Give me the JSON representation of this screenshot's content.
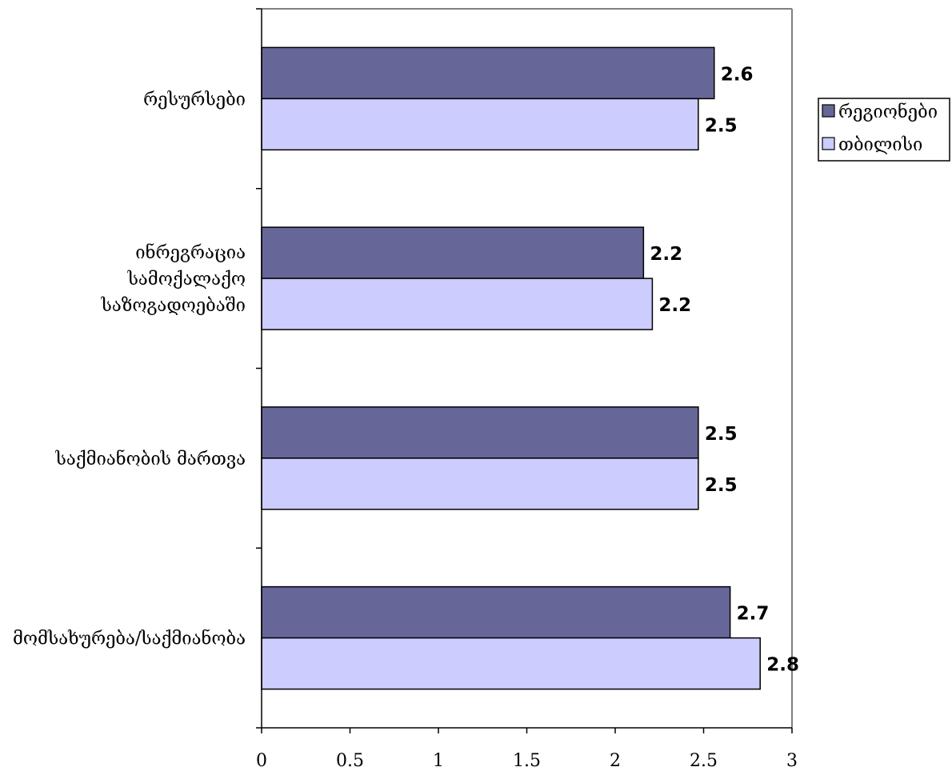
{
  "chart_data": {
    "type": "bar",
    "orientation": "horizontal",
    "categories": [
      "რესურსები",
      "ინრეგრაცია სამოქალაქო საზოგადოებაში",
      "საქმიანობის მართვა",
      "მომსახურება/საქმიანობა"
    ],
    "category_lines": [
      [
        "რესურსები"
      ],
      [
        "ინრეგრაცია",
        "სამოქალაქო",
        "საზოგადოებაში"
      ],
      [
        "საქმიანობის  მართვა"
      ],
      [
        "მომსახურება/საქმიანობა"
      ]
    ],
    "series": [
      {
        "name": "რეგიონები",
        "values": [
          2.56,
          2.16,
          2.47,
          2.65
        ],
        "labels": [
          "2.6",
          "2.2",
          "2.5",
          "2.7"
        ],
        "color": "#666699"
      },
      {
        "name": "თბილისი",
        "values": [
          2.47,
          2.21,
          2.47,
          2.82
        ],
        "labels": [
          "2.5",
          "2.2",
          "2.5",
          "2.8"
        ],
        "color": "#ccccff"
      }
    ],
    "xlim": [
      0,
      3
    ],
    "xticks": [
      "0",
      "0.5",
      "1",
      "1.5",
      "2",
      "2.5",
      "3"
    ],
    "title": "",
    "xlabel": "",
    "ylabel": "",
    "grid": false,
    "legend_position": "right"
  }
}
